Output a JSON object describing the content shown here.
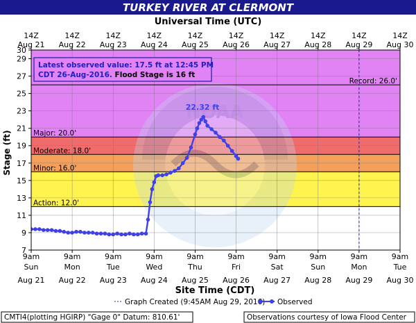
{
  "header": {
    "title": "TURKEY RIVER AT CLERMONT",
    "top_axis_label": "Universal Time (UTC)"
  },
  "legend_box": {
    "line1": "Latest observed value: 17.5 ft at 12:45 PM",
    "line2_date": "CDT 26-Aug-2016.",
    "line2_flood": " Flood Stage is 16 ft"
  },
  "footer": {
    "graph_created": "Graph Created (9:45AM Aug 29, 2016)",
    "observed_label": "Observed",
    "datum": "CMTI4(plotting HGIRP) \"Gage 0\" Datum: 810.61'",
    "courtesy": "Observations courtesy of Iowa Flood Center"
  },
  "colors": {
    "title_bg": "#1a1a8c",
    "record_band": "#e183f5",
    "major_band": "#f06b6b",
    "moderate_band": "#f5a05a",
    "minor_band": "#fff34d",
    "action_band": "#ffffff",
    "observed_line": "#4040e8"
  },
  "chart_data": {
    "type": "line",
    "xlabel": "Site Time (CDT)",
    "ylabel": "Stage (ft)",
    "ylim": [
      7,
      30
    ],
    "yticks": [
      7,
      9,
      11,
      13,
      15,
      17,
      19,
      21,
      23,
      25,
      27,
      29,
      30
    ],
    "xlim": [
      0,
      9
    ],
    "x_ticks": [
      {
        "x": 0,
        "top1": "14Z",
        "top2": "Aug 21",
        "bot1": "9am",
        "bot2": "Sun",
        "bot3": "Aug 21"
      },
      {
        "x": 1,
        "top1": "14Z",
        "top2": "Aug 22",
        "bot1": "9am",
        "bot2": "Mon",
        "bot3": "Aug 22"
      },
      {
        "x": 2,
        "top1": "14Z",
        "top2": "Aug 23",
        "bot1": "9am",
        "bot2": "Tue",
        "bot3": "Aug 23"
      },
      {
        "x": 3,
        "top1": "14Z",
        "top2": "Aug 24",
        "bot1": "9am",
        "bot2": "Wed",
        "bot3": "Aug 24"
      },
      {
        "x": 4,
        "top1": "14Z",
        "top2": "Aug 25",
        "bot1": "9am",
        "bot2": "Thu",
        "bot3": "Aug 25"
      },
      {
        "x": 5,
        "top1": "14Z",
        "top2": "Aug 26",
        "bot1": "9am",
        "bot2": "Fri",
        "bot3": "Aug 26"
      },
      {
        "x": 6,
        "top1": "14Z",
        "top2": "Aug 27",
        "bot1": "9am",
        "bot2": "Sat",
        "bot3": "Aug 27"
      },
      {
        "x": 7,
        "top1": "14Z",
        "top2": "Aug 28",
        "bot1": "9am",
        "bot2": "Sun",
        "bot3": "Aug 28"
      },
      {
        "x": 8,
        "top1": "14Z",
        "top2": "Aug 29",
        "bot1": "9am",
        "bot2": "Mon",
        "bot3": "Aug 29"
      },
      {
        "x": 9,
        "top1": "14Z",
        "top2": "Aug 30",
        "bot1": "9am",
        "bot2": "Tue",
        "bot3": "Aug 30"
      }
    ],
    "flood_categories": [
      {
        "name": "record",
        "label": "Record: 26.0'",
        "value": 26.0
      },
      {
        "name": "major",
        "label": "Major: 20.0'",
        "value": 20.0
      },
      {
        "name": "moderate",
        "label": "Moderate: 18.0'",
        "value": 18.0
      },
      {
        "name": "minor",
        "label": "Minor: 16.0'",
        "value": 16.0
      },
      {
        "name": "action",
        "label": "Action: 12.0'",
        "value": 12.0
      }
    ],
    "graph_created_x": 8.0,
    "peak": {
      "label": "22.32 ft",
      "x": 4.18,
      "y": 22.32
    },
    "series": [
      {
        "name": "Observed",
        "x": [
          0.0,
          0.1,
          0.2,
          0.3,
          0.4,
          0.5,
          0.6,
          0.7,
          0.8,
          0.9,
          1.0,
          1.1,
          1.2,
          1.3,
          1.4,
          1.5,
          1.6,
          1.7,
          1.8,
          1.9,
          2.0,
          2.1,
          2.2,
          2.3,
          2.4,
          2.5,
          2.6,
          2.7,
          2.8,
          2.85,
          2.9,
          2.95,
          3.0,
          3.05,
          3.1,
          3.2,
          3.3,
          3.4,
          3.5,
          3.6,
          3.7,
          3.8,
          3.9,
          4.0,
          4.05,
          4.1,
          4.15,
          4.2,
          4.25,
          4.3,
          4.4,
          4.5,
          4.6,
          4.7,
          4.8,
          4.9,
          5.0,
          5.05
        ],
        "values": [
          9.4,
          9.4,
          9.4,
          9.3,
          9.3,
          9.3,
          9.2,
          9.2,
          9.1,
          9.0,
          9.0,
          9.1,
          9.1,
          9.0,
          9.0,
          9.0,
          8.9,
          8.9,
          8.9,
          8.8,
          8.8,
          8.9,
          8.8,
          8.8,
          8.9,
          8.8,
          8.8,
          8.9,
          8.9,
          10.5,
          12.5,
          14.0,
          14.8,
          15.5,
          15.6,
          15.6,
          15.7,
          15.9,
          16.1,
          16.4,
          17.0,
          17.6,
          18.8,
          20.3,
          21.0,
          21.6,
          22.0,
          22.3,
          21.8,
          21.3,
          20.9,
          20.5,
          20.0,
          19.6,
          19.0,
          18.4,
          17.8,
          17.5
        ]
      }
    ]
  }
}
